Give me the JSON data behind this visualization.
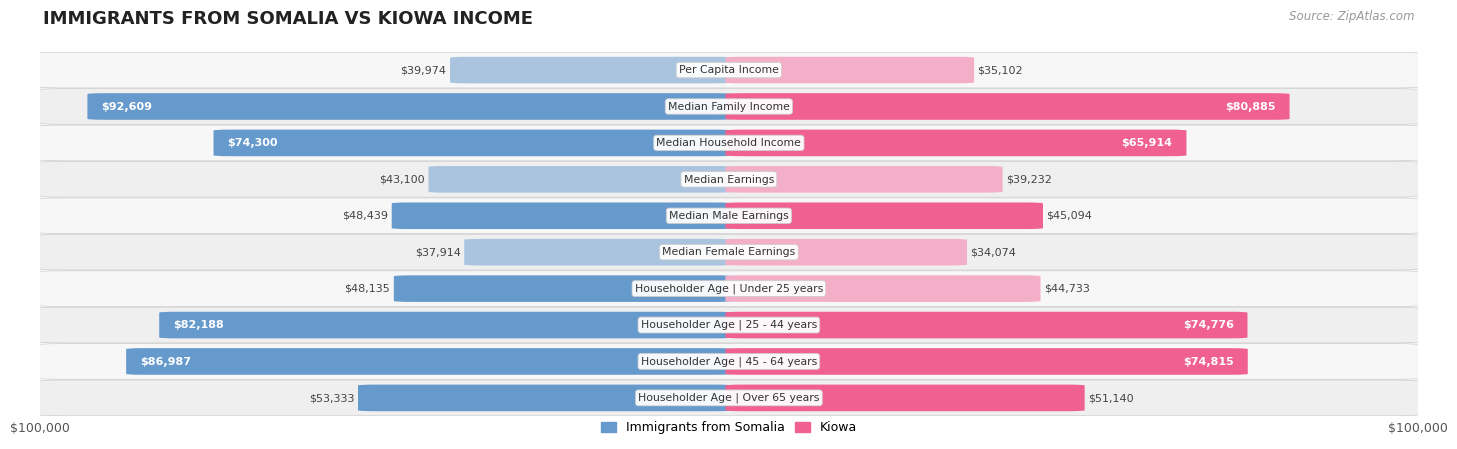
{
  "title": "IMMIGRANTS FROM SOMALIA VS KIOWA INCOME",
  "source": "Source: ZipAtlas.com",
  "categories": [
    "Per Capita Income",
    "Median Family Income",
    "Median Household Income",
    "Median Earnings",
    "Median Male Earnings",
    "Median Female Earnings",
    "Householder Age | Under 25 years",
    "Householder Age | 25 - 44 years",
    "Householder Age | 45 - 64 years",
    "Householder Age | Over 65 years"
  ],
  "somalia_values": [
    39974,
    92609,
    74300,
    43100,
    48439,
    37914,
    48135,
    82188,
    86987,
    53333
  ],
  "kiowa_values": [
    35102,
    80885,
    65914,
    39232,
    45094,
    34074,
    44733,
    74776,
    74815,
    51140
  ],
  "somalia_labels": [
    "$39,974",
    "$92,609",
    "$74,300",
    "$43,100",
    "$48,439",
    "$37,914",
    "$48,135",
    "$82,188",
    "$86,987",
    "$53,333"
  ],
  "kiowa_labels": [
    "$35,102",
    "$80,885",
    "$65,914",
    "$39,232",
    "$45,094",
    "$34,074",
    "$44,733",
    "$74,776",
    "$74,815",
    "$51,140"
  ],
  "somalia_label_inside": [
    false,
    true,
    true,
    false,
    false,
    false,
    false,
    true,
    true,
    false
  ],
  "kiowa_label_inside": [
    false,
    true,
    true,
    false,
    false,
    false,
    false,
    true,
    true,
    false
  ],
  "max_value": 100000,
  "somalia_color_light": "#aac4e0",
  "somalia_color_dark": "#6699cc",
  "kiowa_color_light": "#f4afc8",
  "kiowa_color_dark": "#f06090",
  "row_bg_even": "#f7f7f7",
  "row_bg_odd": "#efefef",
  "row_border": "#dddddd",
  "bar_height": 0.72,
  "label_threshold": 0.45,
  "legend_somalia": "Immigrants from Somalia",
  "legend_kiowa": "Kiowa",
  "x_label_left": "$100,000",
  "x_label_right": "$100,000"
}
